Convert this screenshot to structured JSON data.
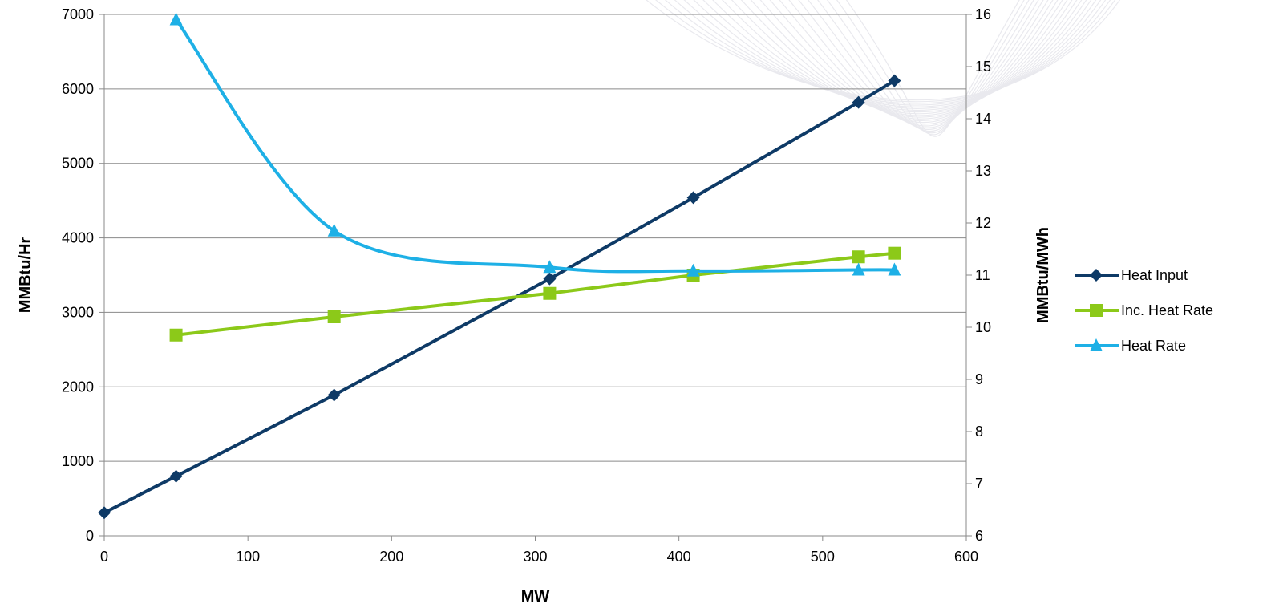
{
  "chart_data": {
    "type": "line",
    "xlabel": "MW",
    "ylabel_left": "MMBtu/Hr",
    "ylabel_right": "MMBtu/MWh",
    "xlim": [
      0,
      600
    ],
    "ylim_left": [
      0,
      7000
    ],
    "ylim_right": [
      6,
      16
    ],
    "x_ticks": [
      "0",
      "100",
      "200",
      "300",
      "400",
      "500",
      "600"
    ],
    "y_left_ticks": [
      "0",
      "1000",
      "2000",
      "3000",
      "4000",
      "5000",
      "6000",
      "7000"
    ],
    "y_right_ticks": [
      "6",
      "7",
      "8",
      "9",
      "10",
      "11",
      "12",
      "13",
      "14",
      "15",
      "16"
    ],
    "grid": "horizontal",
    "legend_position": "right",
    "series": [
      {
        "name": "Heat Input",
        "axis": "left",
        "marker": "diamond",
        "color": "#0e3a66",
        "smooth": false,
        "x": [
          0,
          50,
          160,
          310,
          410,
          525,
          550
        ],
        "y": [
          310,
          800,
          1890,
          3450,
          4540,
          5820,
          6110
        ]
      },
      {
        "name": "Inc. Heat Rate",
        "axis": "right",
        "marker": "square",
        "color": "#8cc919",
        "smooth": false,
        "x": [
          50,
          160,
          310,
          410,
          525,
          550
        ],
        "y": [
          9.85,
          10.2,
          10.65,
          11.0,
          11.35,
          11.42
        ]
      },
      {
        "name": "Heat Rate",
        "axis": "right",
        "marker": "triangle",
        "color": "#1eb0e6",
        "smooth": true,
        "x": [
          50,
          160,
          310,
          410,
          525,
          550
        ],
        "y": [
          15.9,
          11.85,
          11.15,
          11.08,
          11.1,
          11.1
        ]
      }
    ]
  }
}
